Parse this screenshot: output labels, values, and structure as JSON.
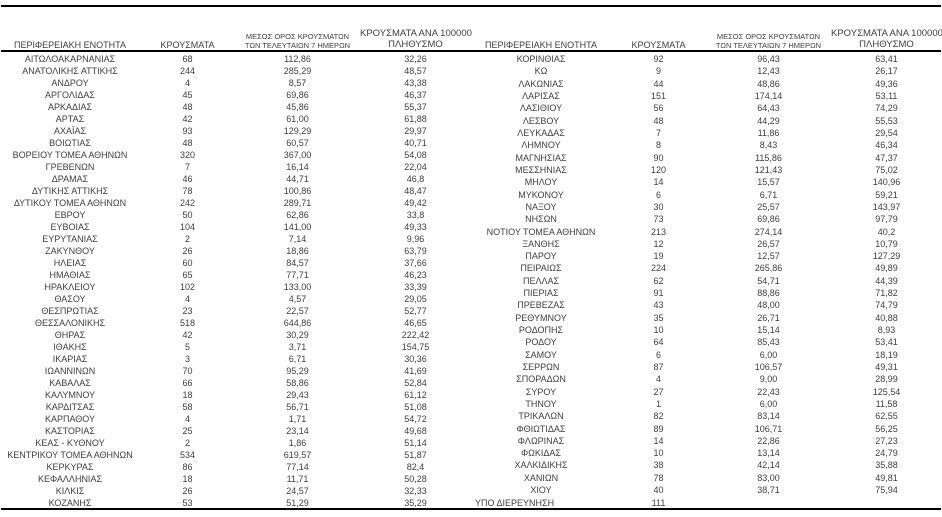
{
  "style": {
    "text_color": "#404040",
    "rule_color": "#000000",
    "background_color": "#ffffff"
  },
  "table": {
    "headers": {
      "region": "ΠΕΡΙΦΕΡΕΙΑΚΗ ΕΝΟΤΗΤΑ",
      "cases": "ΚΡΟΥΣΜΑΤΑ",
      "avg7_line1": "ΜΕΣΟΣ ΟΡΟΣ ΚΡΟΥΣΜΑΤΩΝ",
      "avg7_line2": "ΤΩΝ ΤΕΛΕΥΤΑΙΩΝ 7 ΗΜΕΡΩΝ",
      "per100k_line1": "ΚΡΟΥΣΜΑΤΑ ΑΝΑ 100000",
      "per100k_line2": "ΠΛΗΘΥΣΜΟ"
    },
    "left_align_names": [
      "ΥΠΟ ΔΙΕΡΕΥΝΗΣΗ"
    ],
    "left_rows": [
      [
        "ΑΙΤΩΛΟΑΚΑΡΝΑΝΙΑΣ",
        "68",
        "112,86",
        "32,26"
      ],
      [
        "ΑΝΑΤΟΛΙΚΗΣ ΑΤΤΙΚΗΣ",
        "244",
        "285,29",
        "48,57"
      ],
      [
        "ΑΝΔΡΟΥ",
        "4",
        "8,57",
        "43,38"
      ],
      [
        "ΑΡΓΟΛΙΔΑΣ",
        "45",
        "69,86",
        "46,37"
      ],
      [
        "ΑΡΚΑΔΙΑΣ",
        "48",
        "45,86",
        "55,37"
      ],
      [
        "ΑΡΤΑΣ",
        "42",
        "61,00",
        "61,88"
      ],
      [
        "ΑΧΑΪΑΣ",
        "93",
        "129,29",
        "29,97"
      ],
      [
        "ΒΟΙΩΤΙΑΣ",
        "48",
        "60,57",
        "40,71"
      ],
      [
        "ΒΟΡΕΙΟΥ ΤΟΜΕΑ ΑΘΗΝΩΝ",
        "320",
        "367,00",
        "54,08"
      ],
      [
        "ΓΡΕΒΕΝΩΝ",
        "7",
        "16,14",
        "22,04"
      ],
      [
        "ΔΡΑΜΑΣ",
        "46",
        "44,71",
        "46,8"
      ],
      [
        "ΔΥΤΙΚΗΣ ΑΤΤΙΚΗΣ",
        "78",
        "100,86",
        "48,47"
      ],
      [
        "ΔΥΤΙΚΟΥ ΤΟΜΕΑ ΑΘΗΝΩΝ",
        "242",
        "289,71",
        "49,42"
      ],
      [
        "ΕΒΡΟΥ",
        "50",
        "62,86",
        "33,8"
      ],
      [
        "ΕΥΒΟΙΑΣ",
        "104",
        "141,00",
        "49,33"
      ],
      [
        "ΕΥΡΥΤΑΝΙΑΣ",
        "2",
        "7,14",
        "9,96"
      ],
      [
        "ΖΑΚΥΝΘΟΥ",
        "26",
        "18,86",
        "63,79"
      ],
      [
        "ΗΛΕΙΑΣ",
        "60",
        "84,57",
        "37,66"
      ],
      [
        "ΗΜΑΘΙΑΣ",
        "65",
        "77,71",
        "46,23"
      ],
      [
        "ΗΡΑΚΛΕΙΟΥ",
        "102",
        "133,00",
        "33,39"
      ],
      [
        "ΘΑΣΟΥ",
        "4",
        "4,57",
        "29,05"
      ],
      [
        "ΘΕΣΠΡΩΤΙΑΣ",
        "23",
        "22,57",
        "52,77"
      ],
      [
        "ΘΕΣΣΑΛΟΝΙΚΗΣ",
        "518",
        "644,86",
        "46,65"
      ],
      [
        "ΘΗΡΑΣ",
        "42",
        "30,29",
        "222,42"
      ],
      [
        "ΙΘΑΚΗΣ",
        "5",
        "3,71",
        "154,75"
      ],
      [
        "ΙΚΑΡΙΑΣ",
        "3",
        "6,71",
        "30,36"
      ],
      [
        "ΙΩΑΝΝΙΝΩΝ",
        "70",
        "95,29",
        "41,69"
      ],
      [
        "ΚΑΒΑΛΑΣ",
        "66",
        "58,86",
        "52,84"
      ],
      [
        "ΚΑΛΥΜΝΟΥ",
        "18",
        "29,43",
        "61,12"
      ],
      [
        "ΚΑΡΔΙΤΣΑΣ",
        "58",
        "56,71",
        "51,08"
      ],
      [
        "ΚΑΡΠΑΘΟΥ",
        "4",
        "1,71",
        "54,72"
      ],
      [
        "ΚΑΣΤΟΡΙΑΣ",
        "25",
        "23,14",
        "49,68"
      ],
      [
        "ΚΕΑΣ - ΚΥΘΝΟΥ",
        "2",
        "1,86",
        "51,14"
      ],
      [
        "ΚΕΝΤΡΙΚΟΥ ΤΟΜΕΑ ΑΘΗΝΩΝ",
        "534",
        "619,57",
        "51,87"
      ],
      [
        "ΚΕΡΚΥΡΑΣ",
        "86",
        "77,14",
        "82,4"
      ],
      [
        "ΚΕΦΑΛΛΗΝΙΑΣ",
        "18",
        "11,71",
        "50,28"
      ],
      [
        "ΚΙΛΚΙΣ",
        "26",
        "24,57",
        "32,33"
      ],
      [
        "ΚΟΖΑΝΗΣ",
        "53",
        "51,29",
        "35,29"
      ]
    ],
    "right_rows": [
      [
        "ΚΟΡΙΝΘΙΑΣ",
        "92",
        "96,43",
        "63,41"
      ],
      [
        "ΚΩ",
        "9",
        "12,43",
        "26,17"
      ],
      [
        "ΛΑΚΩΝΙΑΣ",
        "44",
        "48,86",
        "49,36"
      ],
      [
        "ΛΑΡΙΣΑΣ",
        "151",
        "174,14",
        "53,11"
      ],
      [
        "ΛΑΣΙΘΙΟΥ",
        "56",
        "64,43",
        "74,29"
      ],
      [
        "ΛΕΣΒΟΥ",
        "48",
        "44,29",
        "55,53"
      ],
      [
        "ΛΕΥΚΑΔΑΣ",
        "7",
        "11,86",
        "29,54"
      ],
      [
        "ΛΗΜΝΟΥ",
        "8",
        "8,43",
        "46,34"
      ],
      [
        "ΜΑΓΝΗΣΙΑΣ",
        "90",
        "115,86",
        "47,37"
      ],
      [
        "ΜΕΣΣΗΝΙΑΣ",
        "120",
        "121,43",
        "75,02"
      ],
      [
        "ΜΗΛΟΥ",
        "14",
        "15,57",
        "140,96"
      ],
      [
        "ΜΥΚΟΝΟΥ",
        "6",
        "6,71",
        "59,21"
      ],
      [
        "ΝΑΞΟΥ",
        "30",
        "25,57",
        "143,97"
      ],
      [
        "ΝΗΣΩΝ",
        "73",
        "69,86",
        "97,79"
      ],
      [
        "ΝΟΤΙΟΥ ΤΟΜΕΑ ΑΘΗΝΩΝ",
        "213",
        "274,14",
        "40,2"
      ],
      [
        "ΞΑΝΘΗΣ",
        "12",
        "26,57",
        "10,79"
      ],
      [
        "ΠΑΡΟΥ",
        "19",
        "12,57",
        "127,29"
      ],
      [
        "ΠΕΙΡΑΙΩΣ",
        "224",
        "265,86",
        "49,89"
      ],
      [
        "ΠΕΛΛΑΣ",
        "62",
        "54,71",
        "44,39"
      ],
      [
        "ΠΙΕΡΙΑΣ",
        "91",
        "88,86",
        "71,82"
      ],
      [
        "ΠΡΕΒΕΖΑΣ",
        "43",
        "48,00",
        "74,79"
      ],
      [
        "ΡΕΘΥΜΝΟΥ",
        "35",
        "26,71",
        "40,88"
      ],
      [
        "ΡΟΔΟΠΗΣ",
        "10",
        "15,14",
        "8,93"
      ],
      [
        "ΡΟΔΟΥ",
        "64",
        "85,43",
        "53,41"
      ],
      [
        "ΣΑΜΟΥ",
        "6",
        "6,00",
        "18,19"
      ],
      [
        "ΣΕΡΡΩΝ",
        "87",
        "106,57",
        "49,31"
      ],
      [
        "ΣΠΟΡΑΔΩΝ",
        "4",
        "9,00",
        "28,99"
      ],
      [
        "ΣΥΡΟΥ",
        "27",
        "22,43",
        "125,54"
      ],
      [
        "ΤΗΝΟΥ",
        "1",
        "6,00",
        "11,58"
      ],
      [
        "ΤΡΙΚΑΛΩΝ",
        "82",
        "83,14",
        "62,55"
      ],
      [
        "ΦΘΙΩΤΙΔΑΣ",
        "89",
        "106,71",
        "56,25"
      ],
      [
        "ΦΛΩΡΙΝΑΣ",
        "14",
        "22,86",
        "27,23"
      ],
      [
        "ΦΩΚΙΔΑΣ",
        "10",
        "13,14",
        "24,79"
      ],
      [
        "ΧΑΛΚΙΔΙΚΗΣ",
        "38",
        "42,14",
        "35,88"
      ],
      [
        "ΧΑΝΙΩΝ",
        "78",
        "83,00",
        "49,81"
      ],
      [
        "ΧΙΟΥ",
        "40",
        "38,71",
        "75,94"
      ],
      [
        "ΥΠΟ ΔΙΕΡΕΥΝΗΣΗ",
        "111",
        "",
        ""
      ]
    ]
  }
}
